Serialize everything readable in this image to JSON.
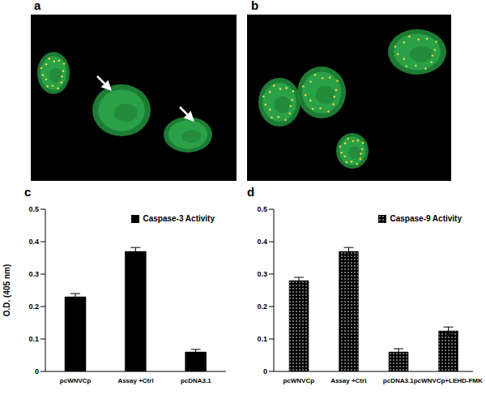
{
  "panel_labels": [
    "a",
    "b",
    "c",
    "d"
  ],
  "chart_data": [
    {
      "type": "bar",
      "ylabel": "O.D. (405 nm)",
      "categories": [
        "pcWNVCp",
        "Assay +Ctrl",
        "pcDNA3.1"
      ],
      "series": [
        {
          "name": "Caspase-3 Activity",
          "color": "#000000",
          "values": [
            0.23,
            0.37,
            0.06
          ],
          "errors": [
            0.01,
            0.012,
            0.008
          ]
        }
      ],
      "ylim": [
        0,
        0.5
      ],
      "yticks": [
        0,
        0.1,
        0.2,
        0.3,
        0.4,
        0.5
      ],
      "legend": "upper right"
    },
    {
      "type": "bar",
      "categories": [
        "pcWNVCp",
        "Assay +Ctrl",
        "pcDNA3.1",
        "pcWNVCp+LEHD-FMK"
      ],
      "series": [
        {
          "name": "Caspase-9 Activity",
          "color": "#000000",
          "values": [
            0.28,
            0.37,
            0.06,
            0.125
          ],
          "errors": [
            0.01,
            0.012,
            0.01,
            0.012
          ]
        }
      ],
      "ylim": [
        0,
        0.5
      ],
      "yticks": [
        0,
        0.1,
        0.2,
        0.3,
        0.4,
        0.5
      ],
      "legend": "upper right"
    }
  ]
}
